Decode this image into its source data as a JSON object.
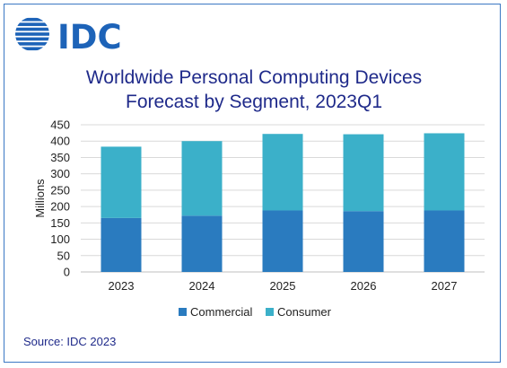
{
  "brand": {
    "logo_text": "IDC",
    "logo_color": "#1d63b8"
  },
  "source": "Source: IDC 2023",
  "colors": {
    "commercial": "#2a7bbf",
    "consumer": "#3bb0c9",
    "grid": "#d9d9d9",
    "title": "#1f2a8a",
    "frame": "#3b78c4"
  },
  "chart_data": {
    "type": "bar",
    "stacked": true,
    "title_lines": [
      "Worldwide Personal Computing Devices",
      "Forecast by Segment, 2023Q1"
    ],
    "xlabel": "",
    "ylabel": "Millions",
    "ylim": [
      0,
      450
    ],
    "yticks": [
      0,
      50,
      100,
      150,
      200,
      250,
      300,
      350,
      400,
      450
    ],
    "grid": true,
    "legend_position": "bottom",
    "categories": [
      "2023",
      "2024",
      "2025",
      "2026",
      "2027"
    ],
    "series": [
      {
        "name": "Commercial",
        "values": [
          165,
          172,
          188,
          186,
          188
        ]
      },
      {
        "name": "Consumer",
        "values": [
          218,
          228,
          234,
          235,
          236
        ]
      }
    ]
  }
}
